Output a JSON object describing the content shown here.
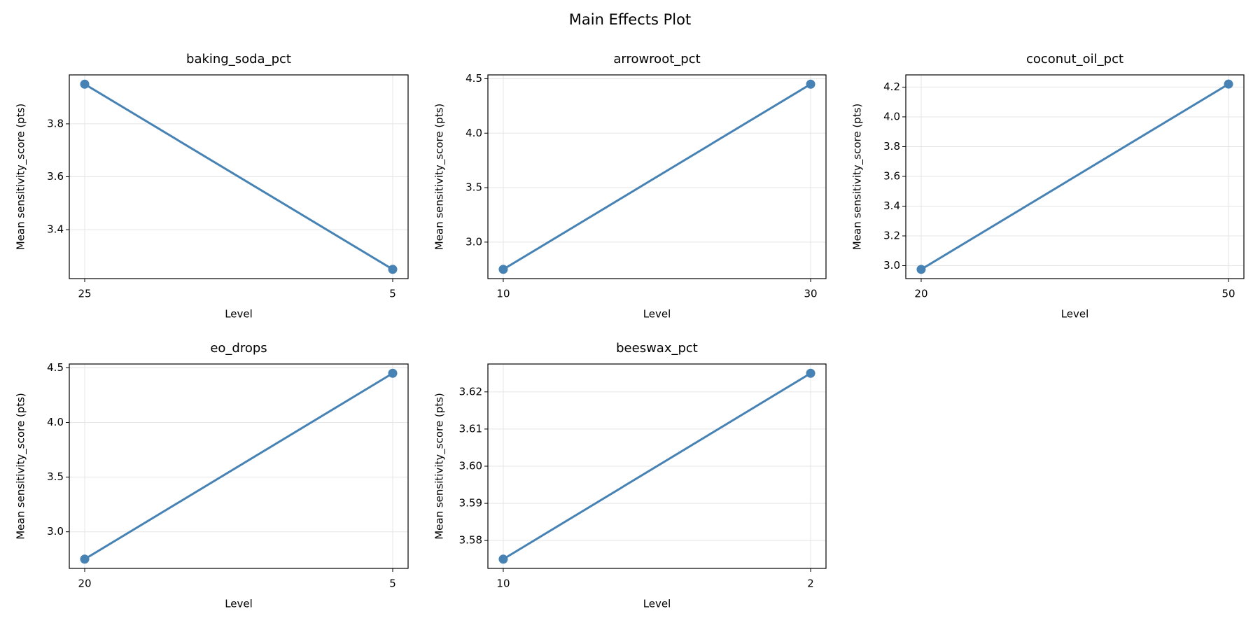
{
  "title": "Main Effects Plot",
  "chart_data": [
    {
      "type": "line",
      "title": "baking_soda_pct",
      "x_label": "Level",
      "y_label": "Mean sensitivity_score (pts)",
      "categories": [
        "25",
        "5"
      ],
      "values": [
        3.95,
        3.25
      ],
      "color": "#4682b4",
      "ylim": [
        3.215,
        3.985
      ],
      "yticks": [
        3.4,
        3.6,
        3.8
      ],
      "grid": true
    },
    {
      "type": "line",
      "title": "arrowroot_pct",
      "x_label": "Level",
      "y_label": "Mean sensitivity_score (pts)",
      "categories": [
        "10",
        "30"
      ],
      "values": [
        2.75,
        4.45
      ],
      "color": "#4682b4",
      "ylim": [
        2.665,
        4.535
      ],
      "yticks": [
        {
          "value": 3,
          "label": "3.0"
        },
        3.5,
        {
          "value": 4,
          "label": "4.0"
        },
        4.5
      ],
      "grid": true
    },
    {
      "type": "line",
      "title": "coconut_oil_pct",
      "x_label": "Level",
      "y_label": "Mean sensitivity_score (pts)",
      "categories": [
        "20",
        "50"
      ],
      "values": [
        2.975,
        4.22
      ],
      "color": "#4682b4",
      "ylim": [
        2.913,
        4.282
      ],
      "yticks": [
        {
          "value": 3,
          "label": "3.0"
        },
        3.2,
        3.4,
        3.6,
        3.8,
        {
          "value": 4,
          "label": "4.0"
        },
        4.2
      ],
      "grid": true
    },
    {
      "type": "line",
      "title": "eo_drops",
      "x_label": "Level",
      "y_label": "Mean sensitivity_score (pts)",
      "categories": [
        "20",
        "5"
      ],
      "values": [
        2.75,
        4.45
      ],
      "color": "#4682b4",
      "ylim": [
        2.665,
        4.535
      ],
      "yticks": [
        {
          "value": 3,
          "label": "3.0"
        },
        3.5,
        {
          "value": 4,
          "label": "4.0"
        },
        4.5
      ],
      "grid": true
    },
    {
      "type": "line",
      "title": "beeswax_pct",
      "x_label": "Level",
      "y_label": "Mean sensitivity_score (pts)",
      "categories": [
        "10",
        "2"
      ],
      "values": [
        3.575,
        3.625
      ],
      "color": "#4682b4",
      "ylim": [
        3.5725,
        3.6275
      ],
      "yticks": [
        3.58,
        3.59,
        {
          "value": 3.6,
          "label": "3.60"
        },
        3.61,
        3.62
      ],
      "grid": true
    }
  ]
}
